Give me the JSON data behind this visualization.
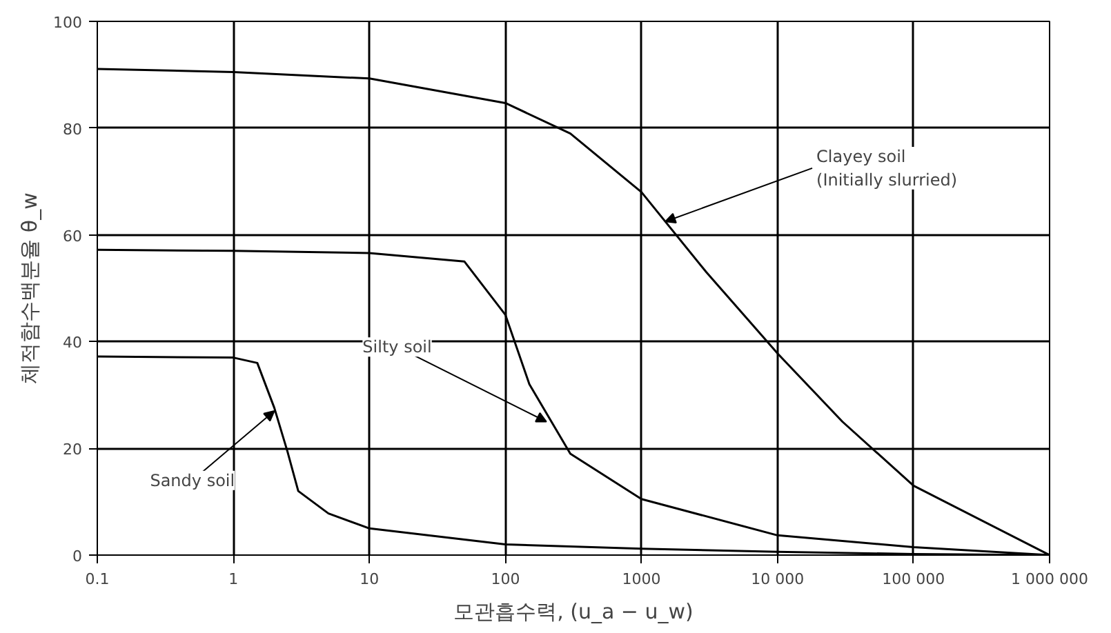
{
  "chart_data": {
    "type": "line",
    "xlabel": "모관흡수력, (u_a − u_w)",
    "ylabel": "체적함수백분율 θ_w",
    "log": "x",
    "xlim": [
      0.1,
      1000000
    ],
    "xticks": [
      0.1,
      1,
      10,
      100,
      1000,
      {
        "value": 10000,
        "label": "10 000"
      },
      {
        "value": 100000,
        "label": "100 000"
      },
      {
        "value": 1000000,
        "label": "1 000 000"
      }
    ],
    "ylim": [
      0,
      100
    ],
    "yticks": [
      0,
      20,
      40,
      60,
      80,
      100
    ],
    "grid": true,
    "marker": "none",
    "line_style": "solid",
    "series": [
      {
        "color": "#000000",
        "x": [
          0.1,
          1,
          10,
          100,
          300,
          1000,
          3000,
          10000,
          30000,
          100000,
          1000000
        ],
        "values": [
          91.1,
          90.5,
          89.3,
          84.7,
          79,
          68,
          53,
          37.8,
          25,
          13,
          0
        ]
      },
      {
        "color": "#000000",
        "x": [
          0.1,
          1,
          10,
          50,
          100,
          150,
          300,
          1000,
          10000,
          100000,
          1000000
        ],
        "values": [
          57.2,
          57,
          56.6,
          55,
          45,
          32,
          19,
          10.5,
          3.7,
          1.5,
          0
        ]
      },
      {
        "color": "#000000",
        "x": [
          0.1,
          1,
          1.5,
          2,
          2.5,
          3,
          5,
          10,
          100,
          1000,
          10000,
          100000,
          1000000
        ],
        "values": [
          37.2,
          37,
          36,
          27.6,
          19.4,
          12,
          7.8,
          5,
          2,
          1.2,
          0.6,
          0.2,
          0
        ]
      }
    ],
    "annotations": [
      {
        "text": "Clayey soil\n(Initially slurried)",
        "x": 1500,
        "y": 62.5
      },
      {
        "text": "Silty soil",
        "x": 200,
        "y": 25
      },
      {
        "text": "Sandy soil",
        "x": 2,
        "y": 27
      }
    ]
  }
}
